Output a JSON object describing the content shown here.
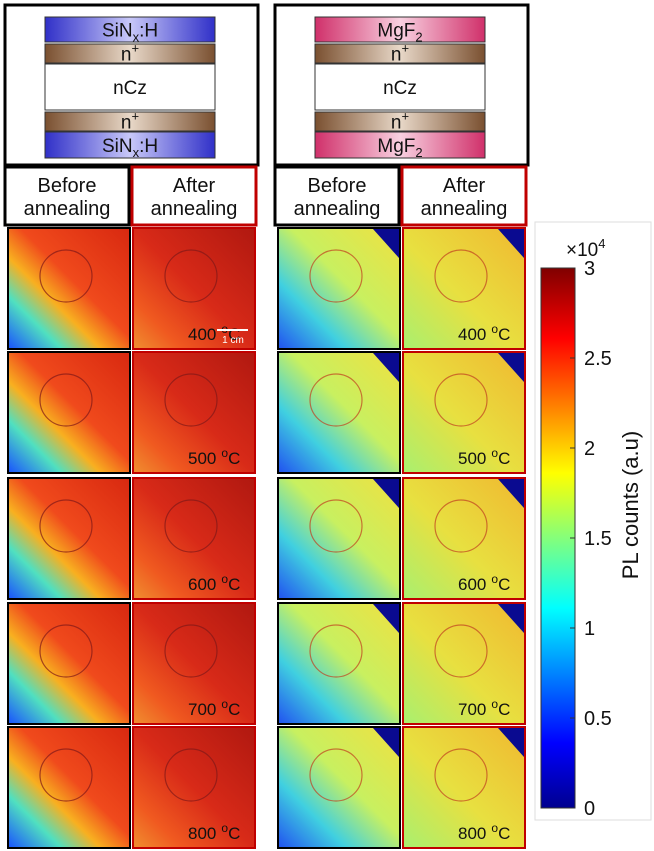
{
  "panels": [
    {
      "stack": [
        {
          "base": "SiN",
          "sub": "x",
          "rest": ":H"
        },
        {
          "base": "n",
          "sup": "+"
        },
        {
          "base": "nCz"
        },
        {
          "base": "n",
          "sup": "+"
        },
        {
          "base": "SiN",
          "sub": "x",
          "rest": ":H"
        }
      ],
      "before": [
        "Before",
        "annealing"
      ],
      "after": [
        "After",
        "annealing"
      ],
      "rows": [
        {
          "temp": "400",
          "sup": "o",
          "unit": "C"
        },
        {
          "temp": "500",
          "sup": "o",
          "unit": "C"
        },
        {
          "temp": "600",
          "sup": "o",
          "unit": "C"
        },
        {
          "temp": "700",
          "sup": "o",
          "unit": "C"
        },
        {
          "temp": "800",
          "sup": "o",
          "unit": "C"
        }
      ],
      "scale_bar": "1 cm"
    },
    {
      "stack": [
        {
          "base": "MgF",
          "sub": "2"
        },
        {
          "base": "n",
          "sup": "+"
        },
        {
          "base": "nCz"
        },
        {
          "base": "n",
          "sup": "+"
        },
        {
          "base": "MgF",
          "sub": "2"
        }
      ],
      "before": [
        "Before",
        "annealing"
      ],
      "after": [
        "After",
        "annealing"
      ],
      "rows": [
        {
          "temp": "400",
          "sup": "o",
          "unit": "C"
        },
        {
          "temp": "500",
          "sup": "o",
          "unit": "C"
        },
        {
          "temp": "600",
          "sup": "o",
          "unit": "C"
        },
        {
          "temp": "700",
          "sup": "o",
          "unit": "C"
        },
        {
          "temp": "800",
          "sup": "o",
          "unit": "C"
        }
      ]
    }
  ],
  "colorbar": {
    "lim": [
      0,
      3
    ],
    "ticks": [
      0,
      0.5,
      1,
      1.5,
      2,
      2.5,
      3
    ],
    "multiplier": {
      "base": "×10",
      "exp": "4"
    },
    "label": "PL counts (a.u)"
  }
}
